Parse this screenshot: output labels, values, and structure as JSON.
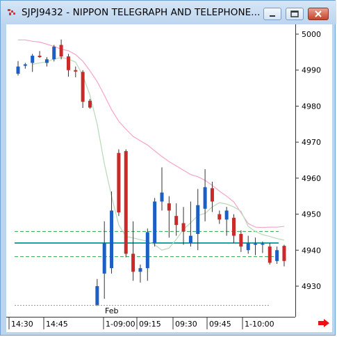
{
  "window": {
    "title": "SJPJ9432 - NIPPON TELEGRAPH AND TELEPHONE...",
    "icons": [
      "app-icon",
      "minimize-icon",
      "maximize-icon",
      "close-icon"
    ]
  },
  "chart_data": {
    "type": "candlestick",
    "y_ticks": [
      "5000",
      "4990",
      "4980",
      "4970",
      "4960",
      "4950",
      "4940",
      "4930"
    ],
    "x_ticks": [
      "14:30",
      "14:45",
      "1-09:00",
      "09:15",
      "09:30",
      "09:45",
      "1-10:00"
    ],
    "period_marker": "Feb",
    "ylim": [
      4923,
      5003
    ],
    "horizontal_lines": [
      {
        "style": "dashed",
        "color": "#2aa84a",
        "value": 4945.2
      },
      {
        "style": "solid",
        "color": "#1ea3a0",
        "value": 4942.0
      },
      {
        "style": "dashed",
        "color": "#2aa84a",
        "value": 4938.2
      }
    ],
    "colors": {
      "up": "#1c5fc4",
      "down": "#c92a2a",
      "ma_fast": "#b8d8b8",
      "ma_slow": "#f7a3c8"
    },
    "candles": [
      {
        "o": 4989.0,
        "h": 4992.5,
        "l": 4988.5,
        "c": 4991.0
      },
      {
        "o": 4991.2,
        "h": 4992.0,
        "l": 4990.4,
        "c": 4991.6
      },
      {
        "o": 4992.0,
        "h": 4994.5,
        "l": 4989.5,
        "c": 4994.0
      },
      {
        "o": 4994.0,
        "h": 4995.3,
        "l": 4993.4,
        "c": 4993.6
      },
      {
        "o": 4992.0,
        "h": 4993.6,
        "l": 4991.0,
        "c": 4993.0
      },
      {
        "o": 4993.0,
        "h": 4997.0,
        "l": 4992.4,
        "c": 4996.5
      },
      {
        "o": 4997.0,
        "h": 4998.5,
        "l": 4993.0,
        "c": 4993.8
      },
      {
        "o": 4993.8,
        "h": 4994.5,
        "l": 4988.2,
        "c": 4990.0
      },
      {
        "o": 4990.0,
        "h": 4991.0,
        "l": 4988.0,
        "c": 4989.6
      },
      {
        "o": 4989.5,
        "h": 4990.0,
        "l": 4979.5,
        "c": 4981.2
      },
      {
        "o": 4981.5,
        "h": 4982.0,
        "l": 4979.3,
        "c": 4979.6
      },
      {
        "o": 4924.8,
        "h": 4932.0,
        "l": 4924.5,
        "c": 4930.0
      },
      {
        "o": 4933.5,
        "h": 4948.0,
        "l": 4926.5,
        "c": 4942.0
      },
      {
        "o": 4935.0,
        "h": 4956.3,
        "l": 4933.5,
        "c": 4951.0
      },
      {
        "o": 4967.0,
        "h": 4968.0,
        "l": 4949.5,
        "c": 4950.5
      },
      {
        "o": 4967.5,
        "h": 4968.0,
        "l": 4938.0,
        "c": 4939.0
      },
      {
        "o": 4939.0,
        "h": 4948.0,
        "l": 4931.5,
        "c": 4934.0
      },
      {
        "o": 4934.0,
        "h": 4936.0,
        "l": 4931.0,
        "c": 4935.0
      },
      {
        "o": 4935.0,
        "h": 4946.0,
        "l": 4931.5,
        "c": 4945.0
      },
      {
        "o": 4942.0,
        "h": 4954.5,
        "l": 4941.0,
        "c": 4953.5
      },
      {
        "o": 4953.5,
        "h": 4963.0,
        "l": 4951.0,
        "c": 4956.0
      },
      {
        "o": 4953.0,
        "h": 4955.0,
        "l": 4943.5,
        "c": 4951.0
      },
      {
        "o": 4949.5,
        "h": 4953.0,
        "l": 4944.0,
        "c": 4947.0
      },
      {
        "o": 4947.5,
        "h": 4952.0,
        "l": 4941.5,
        "c": 4945.2
      },
      {
        "o": 4942.0,
        "h": 4953.5,
        "l": 4941.0,
        "c": 4944.0
      },
      {
        "o": 4944.5,
        "h": 4957.0,
        "l": 4940.0,
        "c": 4952.5
      },
      {
        "o": 4951.5,
        "h": 4962.5,
        "l": 4948.0,
        "c": 4957.5
      },
      {
        "o": 4957.2,
        "h": 4959.0,
        "l": 4950.6,
        "c": 4953.5
      },
      {
        "o": 4950.0,
        "h": 4951.0,
        "l": 4947.3,
        "c": 4948.5
      },
      {
        "o": 4948.5,
        "h": 4952.0,
        "l": 4944.0,
        "c": 4951.0
      },
      {
        "o": 4949.0,
        "h": 4950.0,
        "l": 4942.0,
        "c": 4944.0
      },
      {
        "o": 4944.5,
        "h": 4945.5,
        "l": 4939.5,
        "c": 4941.0
      },
      {
        "o": 4940.0,
        "h": 4944.0,
        "l": 4939.0,
        "c": 4942.0
      },
      {
        "o": 4941.5,
        "h": 4943.5,
        "l": 4938.6,
        "c": 4941.8
      },
      {
        "o": 4941.6,
        "h": 4942.4,
        "l": 4939.2,
        "c": 4941.8
      },
      {
        "o": 4941.0,
        "h": 4942.0,
        "l": 4936.0,
        "c": 4936.5
      },
      {
        "o": 4937.0,
        "h": 4941.0,
        "l": 4936.2,
        "c": 4940.0
      },
      {
        "o": 4941.2,
        "h": 4941.5,
        "l": 4935.5,
        "c": 4937.0
      }
    ],
    "ma_fast": [
      null,
      null,
      4991.6,
      4992.0,
      4992.3,
      4993.1,
      4993.5,
      4993.1,
      4992.2,
      4988.6,
      4983.0,
      4975.0,
      4964.0,
      4955.0,
      4947.0,
      4943.8,
      4943.4,
      4942.9,
      4942.5,
      4941.5,
      4940.0,
      4940.6,
      4943.0,
      4945.8,
      4947.6,
      4949.6,
      4950.2,
      4952.0,
      4953.2,
      4952.8,
      4952.0,
      4950.8,
      4946.6,
      4945.2,
      4944.3,
      4943.8,
      4943.2,
      4942.8
    ],
    "ma_slow": [
      4998.4,
      4998.4,
      4998.0,
      4997.8,
      4997.2,
      4996.6,
      4995.8,
      4995.4,
      4994.3,
      4992.5,
      4989.8,
      4986.8,
      4983.0,
      4979.0,
      4975.8,
      4973.6,
      4971.6,
      4970.4,
      4969.2,
      4967.6,
      4966.0,
      4964.6,
      4963.4,
      4962.2,
      4961.0,
      4960.4,
      4959.4,
      4958.0,
      4956.4,
      4955.0,
      4953.4,
      4950.4,
      4947.4,
      4946.4,
      4946.3,
      4946.4,
      4946.4,
      4946.6
    ]
  }
}
